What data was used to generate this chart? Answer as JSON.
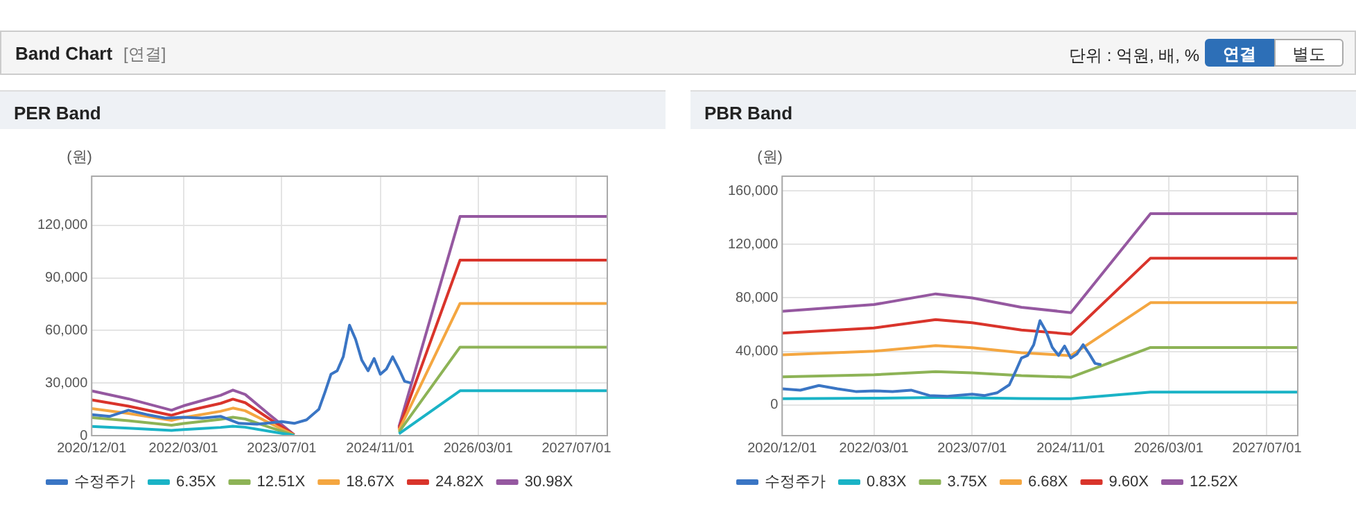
{
  "chart_data": [
    {
      "type": "other",
      "title": "Band Chart",
      "subtitle": "[연결]",
      "annotations": [
        "단위 : 억원, 배, %",
        "연결",
        "별도"
      ]
    },
    {
      "type": "line",
      "title": "PER Band",
      "ylabel": "(원)",
      "xlim": [
        "2020-12-01",
        "2027-12-01"
      ],
      "ylim": [
        0,
        148000
      ],
      "xticks": [
        {
          "value": "2020-12-01",
          "label": "2020/12/01"
        },
        {
          "value": "2022-03-01",
          "label": "2022/03/01"
        },
        {
          "value": "2023-07-01",
          "label": "2023/07/01"
        },
        {
          "value": "2024-11-01",
          "label": "2024/11/01"
        },
        {
          "value": "2026-03-01",
          "label": "2026/03/01"
        },
        {
          "value": "2027-07-01",
          "label": "2027/07/01"
        }
      ],
      "yticks": [
        {
          "value": 0,
          "label": "0"
        },
        {
          "value": 30000,
          "label": "30,000"
        },
        {
          "value": 60000,
          "label": "60,000"
        },
        {
          "value": 90000,
          "label": "90,000"
        },
        {
          "value": 120000,
          "label": "120,000"
        }
      ],
      "grid": true,
      "legend": "bottom",
      "marker": "none",
      "series": [
        {
          "name": "수정주가",
          "color": "#3a75c4",
          "x": [
            "2020-12-01",
            "2021-03-01",
            "2021-06-01",
            "2021-09-01",
            "2021-12-01",
            "2022-03-01",
            "2022-06-01",
            "2022-09-01",
            "2022-12-01",
            "2023-03-01",
            "2023-07-01",
            "2023-09-01",
            "2023-11-01",
            "2024-01-01",
            "2024-02-01",
            "2024-03-01",
            "2024-04-01",
            "2024-05-01",
            "2024-06-01",
            "2024-07-01",
            "2024-08-01",
            "2024-09-01",
            "2024-10-01",
            "2024-11-01",
            "2024-12-01",
            "2025-01-01",
            "2025-02-01",
            "2025-03-01",
            "2025-04-01"
          ],
          "values": [
            12000,
            11000,
            14500,
            12000,
            10000,
            10500,
            10000,
            11000,
            7000,
            6500,
            8000,
            7000,
            9000,
            15000,
            25000,
            35000,
            37000,
            45000,
            63000,
            55000,
            43000,
            37000,
            44000,
            35000,
            38000,
            45000,
            38000,
            31000,
            30000
          ]
        },
        {
          "name": "6.35X",
          "color": "#1ab3c6",
          "x": [
            "2020-12-01",
            "2021-06-01",
            "2022-01-01",
            "2022-03-01",
            "2022-06-01",
            "2022-09-01",
            "2022-11-01",
            "2023-01-01",
            "2023-05-01",
            "2023-09-01",
            "2024-06-01",
            "2025-02-01",
            "2025-12-01",
            "2027-12-01"
          ],
          "values": [
            5200,
            4300,
            3000,
            3500,
            4100,
            4700,
            5300,
            4800,
            2500,
            100,
            null,
            1000,
            25600,
            25600
          ]
        },
        {
          "name": "12.51X",
          "color": "#8db356",
          "x": [
            "2020-12-01",
            "2021-06-01",
            "2022-01-01",
            "2022-03-01",
            "2022-06-01",
            "2022-09-01",
            "2022-11-01",
            "2023-01-01",
            "2023-05-01",
            "2023-09-01",
            "2024-06-01",
            "2025-02-01",
            "2025-12-01",
            "2027-12-01"
          ],
          "values": [
            10300,
            8500,
            5900,
            6900,
            8100,
            9300,
            10500,
            9500,
            4800,
            200,
            null,
            2000,
            50500,
            50500
          ]
        },
        {
          "name": "18.67X",
          "color": "#f4a640",
          "x": [
            "2020-12-01",
            "2021-06-01",
            "2022-01-01",
            "2022-03-01",
            "2022-06-01",
            "2022-09-01",
            "2022-11-01",
            "2023-01-01",
            "2023-05-01",
            "2023-09-01",
            "2024-06-01",
            "2025-02-01",
            "2025-12-01",
            "2027-12-01"
          ],
          "values": [
            15400,
            12700,
            8700,
            10300,
            12100,
            13900,
            15700,
            14200,
            7200,
            300,
            null,
            3000,
            75400,
            75400
          ]
        },
        {
          "name": "24.82X",
          "color": "#d9342b",
          "x": [
            "2020-12-01",
            "2021-06-01",
            "2022-01-01",
            "2022-03-01",
            "2022-06-01",
            "2022-09-01",
            "2022-11-01",
            "2023-01-01",
            "2023-05-01",
            "2023-09-01",
            "2024-06-01",
            "2025-02-01",
            "2025-12-01",
            "2027-12-01"
          ],
          "values": [
            20400,
            16800,
            11600,
            13600,
            16000,
            18400,
            20800,
            18800,
            9600,
            400,
            null,
            4000,
            100100,
            100100
          ]
        },
        {
          "name": "30.98X",
          "color": "#9558a0",
          "x": [
            "2020-12-01",
            "2021-06-01",
            "2022-01-01",
            "2022-03-01",
            "2022-06-01",
            "2022-09-01",
            "2022-11-01",
            "2023-01-01",
            "2023-05-01",
            "2023-09-01",
            "2024-06-01",
            "2025-02-01",
            "2025-12-01",
            "2027-12-01"
          ],
          "values": [
            25500,
            21000,
            14500,
            17000,
            20000,
            23000,
            26000,
            23500,
            12000,
            500,
            null,
            5000,
            125000,
            125000
          ]
        }
      ]
    },
    {
      "type": "line",
      "title": "PBR Band",
      "ylabel": "(원)",
      "xlim": [
        "2020-12-01",
        "2027-12-01"
      ],
      "ylim": [
        -23000,
        171000
      ],
      "xticks": [
        {
          "value": "2020-12-01",
          "label": "2020/12/01"
        },
        {
          "value": "2022-03-01",
          "label": "2022/03/01"
        },
        {
          "value": "2023-07-01",
          "label": "2023/07/01"
        },
        {
          "value": "2024-11-01",
          "label": "2024/11/01"
        },
        {
          "value": "2026-03-01",
          "label": "2026/03/01"
        },
        {
          "value": "2027-07-01",
          "label": "2027/07/01"
        }
      ],
      "yticks": [
        {
          "value": 0,
          "label": "0"
        },
        {
          "value": 40000,
          "label": "40,000"
        },
        {
          "value": 80000,
          "label": "80,000"
        },
        {
          "value": 120000,
          "label": "120,000"
        },
        {
          "value": 160000,
          "label": "160,000"
        }
      ],
      "grid": true,
      "legend": "bottom",
      "marker": "none",
      "series": [
        {
          "name": "수정주가",
          "color": "#3a75c4",
          "x": [
            "2020-12-01",
            "2021-03-01",
            "2021-06-01",
            "2021-09-01",
            "2021-12-01",
            "2022-03-01",
            "2022-06-01",
            "2022-09-01",
            "2022-12-01",
            "2023-03-01",
            "2023-07-01",
            "2023-09-01",
            "2023-11-01",
            "2024-01-01",
            "2024-02-01",
            "2024-03-01",
            "2024-04-01",
            "2024-05-01",
            "2024-06-01",
            "2024-07-01",
            "2024-08-01",
            "2024-09-01",
            "2024-10-01",
            "2024-11-01",
            "2024-12-01",
            "2025-01-01",
            "2025-02-01",
            "2025-03-01",
            "2025-04-01"
          ],
          "values": [
            12000,
            11000,
            14500,
            12000,
            10000,
            10500,
            10000,
            11000,
            7000,
            6500,
            8000,
            7000,
            9000,
            15000,
            25000,
            35000,
            37000,
            45000,
            63000,
            55000,
            43000,
            37000,
            44000,
            35000,
            38000,
            45000,
            38000,
            31000,
            30000
          ]
        },
        {
          "name": "0.83X",
          "color": "#1ab3c6",
          "x": [
            "2020-12-01",
            "2022-03-01",
            "2023-01-01",
            "2023-07-01",
            "2024-03-01",
            "2024-11-01",
            "2025-12-01",
            "2027-12-01"
          ],
          "values": [
            4600,
            5000,
            5500,
            5300,
            4800,
            4600,
            9500,
            9500
          ]
        },
        {
          "name": "3.75X",
          "color": "#8db356",
          "x": [
            "2020-12-01",
            "2022-03-01",
            "2023-01-01",
            "2023-07-01",
            "2024-03-01",
            "2024-11-01",
            "2025-12-01",
            "2027-12-01"
          ],
          "values": [
            21000,
            22500,
            24900,
            24000,
            21900,
            20700,
            42900,
            42900
          ]
        },
        {
          "name": "6.68X",
          "color": "#f4a640",
          "x": [
            "2020-12-01",
            "2022-03-01",
            "2023-01-01",
            "2023-07-01",
            "2024-03-01",
            "2024-11-01",
            "2025-12-01",
            "2027-12-01"
          ],
          "values": [
            37400,
            40100,
            44300,
            42700,
            39000,
            36800,
            76400,
            76400
          ]
        },
        {
          "name": "9.60X",
          "color": "#d9342b",
          "x": [
            "2020-12-01",
            "2022-03-01",
            "2023-01-01",
            "2023-07-01",
            "2024-03-01",
            "2024-11-01",
            "2025-12-01",
            "2027-12-01"
          ],
          "values": [
            53700,
            57500,
            63700,
            61400,
            56000,
            52900,
            109700,
            109700
          ]
        },
        {
          "name": "12.52X",
          "color": "#9558a0",
          "x": [
            "2020-12-01",
            "2022-03-01",
            "2023-01-01",
            "2023-07-01",
            "2024-03-01",
            "2024-11-01",
            "2025-12-01",
            "2027-12-01"
          ],
          "values": [
            70000,
            75000,
            83000,
            80000,
            73000,
            69000,
            143000,
            143000
          ]
        }
      ]
    }
  ]
}
